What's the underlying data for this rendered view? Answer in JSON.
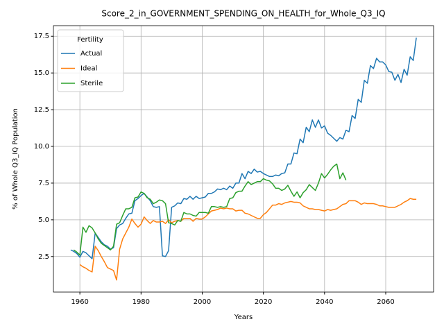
{
  "chart_data": {
    "type": "line",
    "title": "Score_2_in_GOVERNMENT_SPENDING_ON_HEALTH_for_Whole_Q3_IQ",
    "x_label": "Years",
    "y_label": "% of Whole Q3_IQ Population",
    "legend_title": "Fertility",
    "legend_position": "upper left",
    "grid": true,
    "xlim": [
      1951.35,
      2075.65
    ],
    "ylim": [
      0.08,
      18.22
    ],
    "xticks": [
      1960,
      1980,
      2000,
      2020,
      2040,
      2060
    ],
    "yticks": [
      2.5,
      {
        "value": 5,
        "label": "5.0"
      },
      7.5,
      {
        "value": 10,
        "label": "10.0"
      },
      12.5,
      {
        "value": 15,
        "label": "15.0"
      },
      17.5
    ],
    "x": [
      1957,
      1958,
      1959,
      1960,
      1961,
      1962,
      1963,
      1964,
      1965,
      1966,
      1967,
      1968,
      1969,
      1970,
      1971,
      1972,
      1973,
      1974,
      1975,
      1976,
      1977,
      1978,
      1979,
      1980,
      1981,
      1982,
      1983,
      1984,
      1985,
      1986,
      1987,
      1988,
      1989,
      1990,
      1991,
      1992,
      1993,
      1994,
      1995,
      1996,
      1997,
      1998,
      1999,
      2000,
      2001,
      2002,
      2003,
      2004,
      2005,
      2006,
      2007,
      2008,
      2009,
      2010,
      2011,
      2012,
      2013,
      2014,
      2015,
      2016,
      2017,
      2018,
      2019,
      2020,
      2021,
      2022,
      2023,
      2024,
      2025,
      2026,
      2027,
      2028,
      2029,
      2030,
      2031,
      2032,
      2033,
      2034,
      2035,
      2036,
      2037,
      2038,
      2039,
      2040,
      2041,
      2042,
      2043,
      2044,
      2045,
      2046,
      2047,
      2048,
      2049,
      2050,
      2051,
      2052,
      2053,
      2054,
      2055,
      2056,
      2057,
      2058,
      2059,
      2060,
      2061,
      2062,
      2063,
      2064,
      2065,
      2066,
      2067,
      2068,
      2069,
      2070
    ],
    "series": [
      {
        "name": "Actual",
        "color": "#1f77b4",
        "values": [
          2.95,
          2.85,
          2.7,
          2.45,
          2.85,
          2.75,
          2.55,
          2.35,
          4.1,
          3.8,
          3.5,
          3.3,
          3.2,
          3.0,
          3.1,
          4.4,
          4.65,
          4.75,
          5.1,
          5.4,
          5.45,
          6.3,
          6.45,
          6.65,
          6.8,
          6.55,
          6.3,
          5.9,
          5.85,
          5.9,
          2.55,
          2.5,
          2.9,
          5.85,
          5.95,
          6.15,
          6.1,
          6.45,
          6.4,
          6.6,
          6.4,
          6.6,
          6.45,
          6.5,
          6.55,
          6.8,
          6.8,
          6.9,
          7.1,
          7.05,
          7.15,
          7.05,
          7.3,
          7.15,
          7.5,
          7.5,
          8.15,
          7.8,
          8.3,
          8.15,
          8.45,
          8.25,
          8.3,
          8.15,
          8.05,
          7.95,
          7.95,
          8.05,
          8.0,
          8.15,
          8.2,
          8.8,
          8.8,
          9.55,
          9.5,
          10.5,
          10.25,
          11.3,
          11.0,
          11.8,
          11.3,
          11.8,
          11.25,
          11.4,
          10.9,
          10.75,
          10.55,
          10.35,
          10.6,
          10.5,
          11.1,
          11.0,
          12.1,
          11.9,
          13.2,
          13.0,
          14.5,
          14.3,
          15.5,
          15.3,
          16.0,
          15.75,
          15.75,
          15.55,
          15.1,
          15.05,
          14.5,
          14.9,
          14.35,
          15.25,
          14.85,
          16.1,
          15.85,
          17.4
        ]
      },
      {
        "name": "Ideal",
        "color": "#ff7f0e",
        "values": [
          null,
          null,
          null,
          1.95,
          1.8,
          1.7,
          1.55,
          1.45,
          3.2,
          2.9,
          2.5,
          2.15,
          1.75,
          1.65,
          1.55,
          0.9,
          3.0,
          3.7,
          4.1,
          4.5,
          5.05,
          4.75,
          4.5,
          4.7,
          5.2,
          4.95,
          4.75,
          4.95,
          4.85,
          4.85,
          4.9,
          4.75,
          5.0,
          4.8,
          4.9,
          4.95,
          4.9,
          5.1,
          5.1,
          5.1,
          4.9,
          5.1,
          5.05,
          5.05,
          5.2,
          5.4,
          5.6,
          5.65,
          5.7,
          5.8,
          5.75,
          5.8,
          5.75,
          5.75,
          5.6,
          5.65,
          5.65,
          5.45,
          5.4,
          5.3,
          5.2,
          5.1,
          5.1,
          5.35,
          5.5,
          5.75,
          6.0,
          6.0,
          6.1,
          6.05,
          6.15,
          6.2,
          6.25,
          6.2,
          6.2,
          6.15,
          5.95,
          5.85,
          5.75,
          5.75,
          5.7,
          5.7,
          5.65,
          5.6,
          5.7,
          5.65,
          5.7,
          5.75,
          5.9,
          6.05,
          6.1,
          6.3,
          6.3,
          6.3,
          6.2,
          6.05,
          6.15,
          6.1,
          6.1,
          6.1,
          6.05,
          5.95,
          5.95,
          5.9,
          5.85,
          5.85,
          5.85,
          5.95,
          6.05,
          6.2,
          6.3,
          6.45,
          6.4,
          6.4
        ]
      },
      {
        "name": "Sterile",
        "color": "#2ca02c",
        "values": [
          null,
          2.95,
          2.8,
          2.6,
          4.5,
          4.15,
          4.6,
          4.45,
          4.1,
          3.7,
          3.4,
          3.25,
          3.1,
          2.95,
          3.2,
          4.7,
          4.8,
          5.3,
          5.75,
          5.75,
          5.85,
          6.5,
          6.55,
          6.9,
          6.8,
          6.5,
          6.4,
          6.1,
          6.2,
          6.35,
          6.3,
          6.1,
          4.8,
          4.75,
          4.65,
          4.95,
          4.9,
          5.5,
          5.4,
          5.4,
          5.3,
          5.25,
          5.5,
          5.5,
          5.5,
          5.45,
          5.9,
          5.9,
          5.85,
          5.9,
          5.85,
          5.9,
          6.45,
          6.5,
          6.85,
          6.95,
          6.95,
          7.3,
          7.6,
          7.4,
          7.5,
          7.6,
          7.6,
          7.8,
          7.7,
          7.65,
          7.45,
          7.15,
          7.15,
          7.0,
          7.1,
          7.35,
          6.95,
          6.6,
          6.9,
          6.5,
          6.85,
          7.05,
          7.4,
          7.2,
          7.0,
          7.5,
          8.15,
          7.85,
          8.1,
          8.4,
          8.65,
          8.8,
          7.8,
          8.2,
          7.7,
          null,
          null,
          null,
          null,
          null,
          null,
          null,
          null,
          null,
          null,
          null,
          null,
          null,
          null,
          null,
          null,
          null,
          null,
          null,
          null,
          null,
          null,
          null
        ]
      }
    ]
  }
}
